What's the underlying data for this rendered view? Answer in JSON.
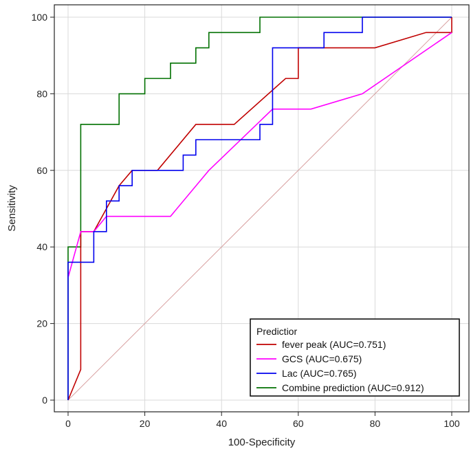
{
  "chart_data": {
    "type": "line",
    "title": "",
    "xlabel": "100-Specificity",
    "ylabel": "Sensitivity",
    "xlim": [
      0,
      100
    ],
    "ylim": [
      0,
      100
    ],
    "xticks": [
      0,
      20,
      40,
      60,
      80,
      100
    ],
    "yticks": [
      0,
      20,
      40,
      60,
      80,
      100
    ],
    "grid": true,
    "legend": {
      "title": "Predictior",
      "placement": "bottom-right"
    },
    "reference_line": {
      "name": "diagonal",
      "color": "#d8a0a0",
      "points": [
        [
          0,
          0
        ],
        [
          100,
          100
        ]
      ]
    },
    "series": [
      {
        "name": "fever peak (AUC=0.751)",
        "color": "#c00000",
        "points": [
          [
            0,
            0
          ],
          [
            3.3,
            8
          ],
          [
            3.3,
            44
          ],
          [
            6.7,
            44
          ],
          [
            13.3,
            56
          ],
          [
            16.7,
            60
          ],
          [
            23.3,
            60
          ],
          [
            33.3,
            72
          ],
          [
            43.3,
            72
          ],
          [
            56.7,
            84
          ],
          [
            60,
            84
          ],
          [
            60,
            92
          ],
          [
            80,
            92
          ],
          [
            93.3,
            96
          ],
          [
            100,
            96
          ],
          [
            100,
            100
          ]
        ]
      },
      {
        "name": "GCS (AUC=0.675)",
        "color": "#ff00ff",
        "points": [
          [
            0,
            32
          ],
          [
            3.3,
            44
          ],
          [
            6.7,
            44
          ],
          [
            10,
            48
          ],
          [
            26.7,
            48
          ],
          [
            36.7,
            60
          ],
          [
            53.3,
            76
          ],
          [
            63.3,
            76
          ],
          [
            76.7,
            80
          ],
          [
            100,
            96
          ]
        ]
      },
      {
        "name": "Lac (AUC=0.765)",
        "color": "#0000ee",
        "points": [
          [
            0,
            0
          ],
          [
            0,
            36
          ],
          [
            6.7,
            36
          ],
          [
            6.7,
            44
          ],
          [
            10,
            44
          ],
          [
            10,
            52
          ],
          [
            13.3,
            52
          ],
          [
            13.3,
            56
          ],
          [
            16.7,
            56
          ],
          [
            16.7,
            60
          ],
          [
            30,
            60
          ],
          [
            30,
            64
          ],
          [
            33.3,
            64
          ],
          [
            33.3,
            68
          ],
          [
            50,
            68
          ],
          [
            50,
            72
          ],
          [
            53.3,
            72
          ],
          [
            53.3,
            92
          ],
          [
            66.7,
            92
          ],
          [
            66.7,
            96
          ],
          [
            76.7,
            96
          ],
          [
            76.7,
            100
          ],
          [
            100,
            100
          ]
        ]
      },
      {
        "name": "Combine prediction (AUC=0.912)",
        "color": "#007000",
        "points": [
          [
            0,
            0
          ],
          [
            0,
            40
          ],
          [
            3.3,
            40
          ],
          [
            3.3,
            72
          ],
          [
            13.3,
            72
          ],
          [
            13.3,
            80
          ],
          [
            20,
            80
          ],
          [
            20,
            84
          ],
          [
            26.7,
            84
          ],
          [
            26.7,
            88
          ],
          [
            33.3,
            88
          ],
          [
            33.3,
            92
          ],
          [
            36.7,
            92
          ],
          [
            36.7,
            96
          ],
          [
            50,
            96
          ],
          [
            50,
            100
          ],
          [
            100,
            100
          ]
        ]
      }
    ]
  }
}
